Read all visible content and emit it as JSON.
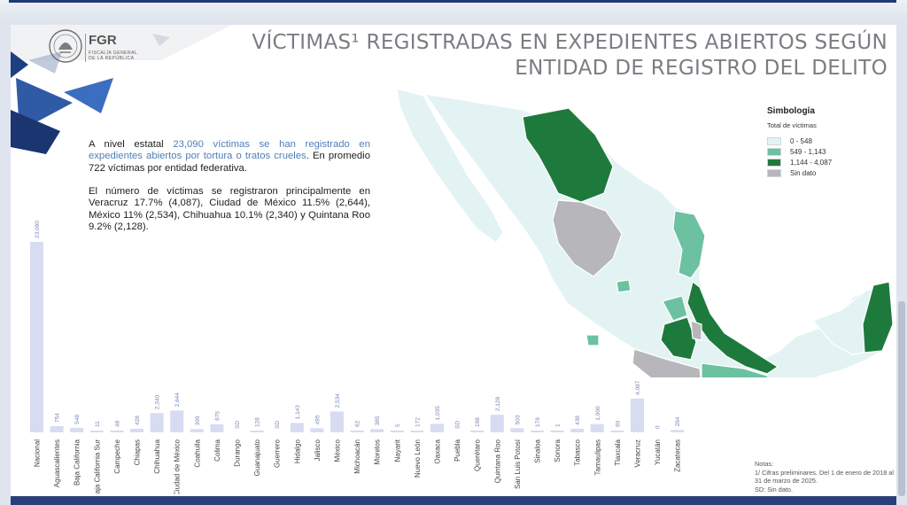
{
  "logo": {
    "org": "FGR",
    "line1": "FISCALÍA GENERAL",
    "line2": "DE LA REPÚBLICA"
  },
  "title": {
    "line1": "VÍCTIMAS¹ REGISTRADAS EN EXPEDIENTES ABIERTOS SEGÚN",
    "line2": "ENTIDAD DE REGISTRO DEL DELITO"
  },
  "paragraph1": {
    "pre": "A nivel estatal ",
    "highlight": "23,090 víctimas se han registrado en expedientes abiertos por tortura o tratos crueles",
    "post": ". En promedio 722 víctimas por entidad federativa."
  },
  "paragraph2": "El número de víctimas se registraron principalmente en Veracruz 17.7% (4,087), Ciudad de México 11.5% (2,644), México 11% (2,534), Chihuahua 10.1% (2,340) y Quintana Roo 9.2% (2,128).",
  "legend": {
    "title": "Simbología",
    "subtitle": "Total de víctimas",
    "items": [
      {
        "label": "0 - 548",
        "color": "#e3f3f3"
      },
      {
        "label": "549 - 1,143",
        "color": "#6cc1a0"
      },
      {
        "label": "1,144 - 4,087",
        "color": "#1e7a3c"
      },
      {
        "label": "Sin dato",
        "color": "#b7b7bb"
      }
    ]
  },
  "notes": {
    "heading": "Notas:",
    "line1": "1/ Cifras preliminares. Del 1 de enero de 2018 al 31 de marzo de 2025.",
    "line2": "SD: Sin dato."
  },
  "colors": {
    "bar": "#d7dcf2",
    "bar_label": "#7a86b8",
    "title": "#7a7d82",
    "highlight": "#4f7eb7",
    "brand_blue": "#2a4a8c"
  },
  "chart_data": {
    "type": "bar",
    "categories": [
      "Nacional",
      "Aguascalientes",
      "Baja California",
      "Baja California Sur",
      "Campeche",
      "Chiapas",
      "Chihuahua",
      "Ciudad de México",
      "Coahuila",
      "Colima",
      "Durango",
      "Guanajuato",
      "Guerrero",
      "Hidalgo",
      "Jalisco",
      "México",
      "Michoacán",
      "Morelos",
      "Nayarit",
      "Nuevo León",
      "Oaxaca",
      "Puebla",
      "Querétaro",
      "Quintana Roo",
      "San Luis Potosí",
      "Sinaloa",
      "Sonora",
      "Tabasco",
      "Tamaulipas",
      "Tlaxcala",
      "Veracruz",
      "Yucatán",
      "Zacatecas"
    ],
    "values": [
      23090,
      754,
      548,
      11,
      48,
      428,
      2340,
      2644,
      399,
      975,
      0,
      128,
      0,
      1143,
      495,
      2534,
      62,
      385,
      5,
      172,
      1035,
      0,
      198,
      2128,
      503,
      178,
      1,
      438,
      1000,
      60,
      4087,
      0,
      284
    ],
    "labels": [
      "23,090",
      "754",
      "548",
      "11",
      "48",
      "428",
      "2,340",
      "2,644",
      "399",
      "975",
      "SD",
      "128",
      "SD",
      "1,143",
      "495",
      "2,534",
      "62",
      "385",
      "5",
      "172",
      "1,035",
      "SD",
      "198",
      "2,128",
      "503",
      "178",
      "1",
      "438",
      "1,000",
      "60",
      "4,087",
      "0",
      "284"
    ],
    "ylim": [
      0,
      23090
    ]
  }
}
